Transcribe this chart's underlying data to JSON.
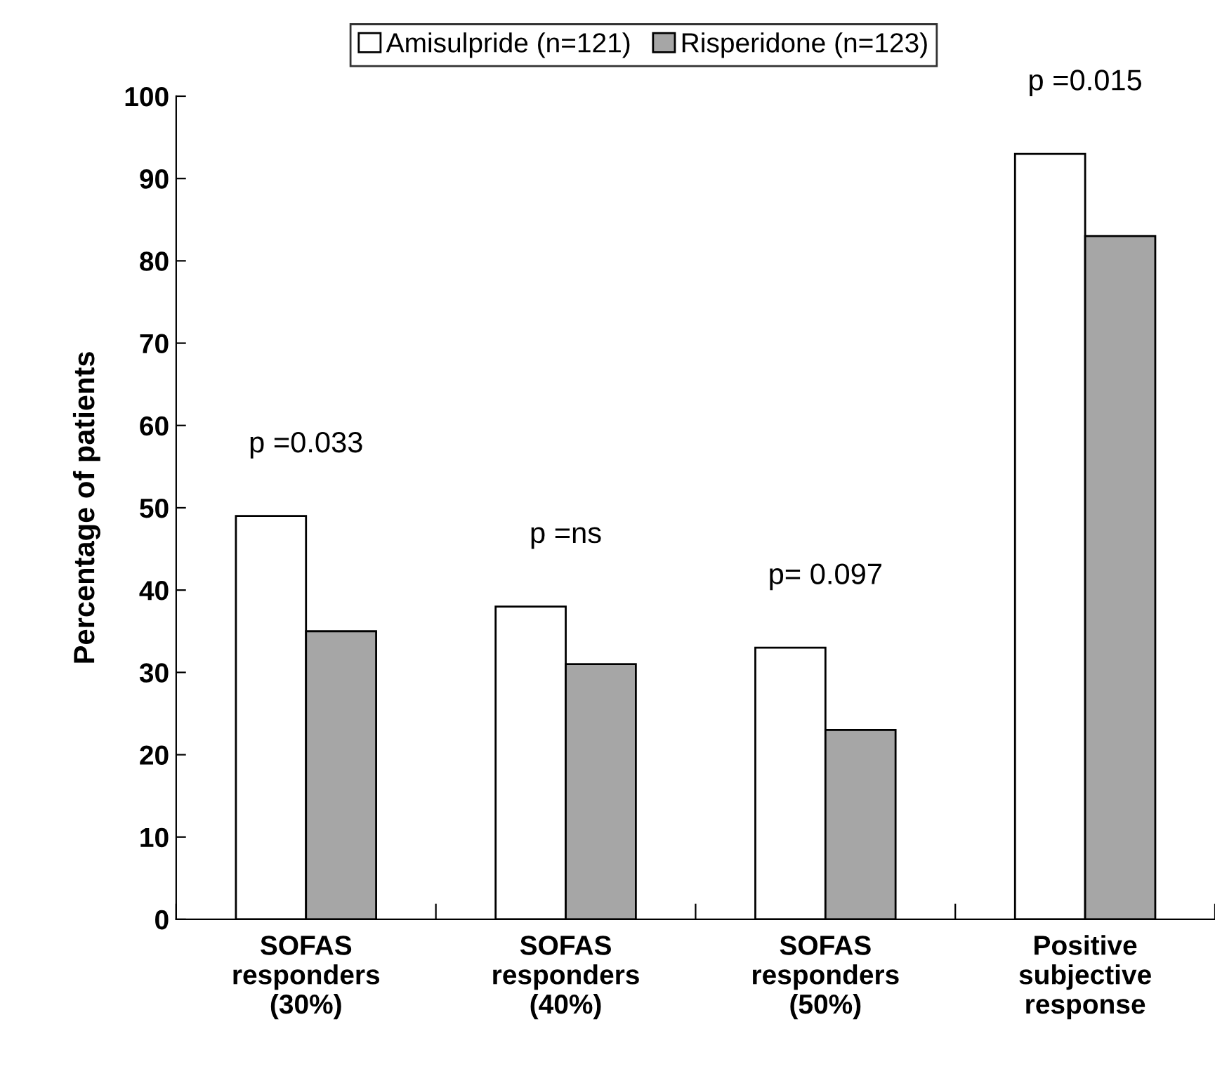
{
  "chart_data": {
    "type": "bar",
    "ylabel": "Percentage of patients",
    "categories": [
      "SOFAS\nresponders\n(30%)",
      "SOFAS\nresponders\n(40%)",
      "SOFAS\nresponders\n(50%)",
      "Positive\nsubjective\nresponse"
    ],
    "series": [
      {
        "name": "Amisulpride (n=121)",
        "color": "#ffffff",
        "values": [
          49,
          38,
          33,
          93
        ]
      },
      {
        "name": "Risperidone (n=123)",
        "color": "#a6a6a6",
        "values": [
          35,
          31,
          23,
          83
        ]
      }
    ],
    "ylim": [
      0,
      100
    ],
    "yticks": [
      0,
      10,
      20,
      30,
      40,
      50,
      60,
      70,
      80,
      90,
      100
    ],
    "grid": false,
    "legend": "top",
    "annotations": [
      "p =0.033",
      "p =ns",
      "p= 0.097",
      "p =0.015"
    ]
  }
}
